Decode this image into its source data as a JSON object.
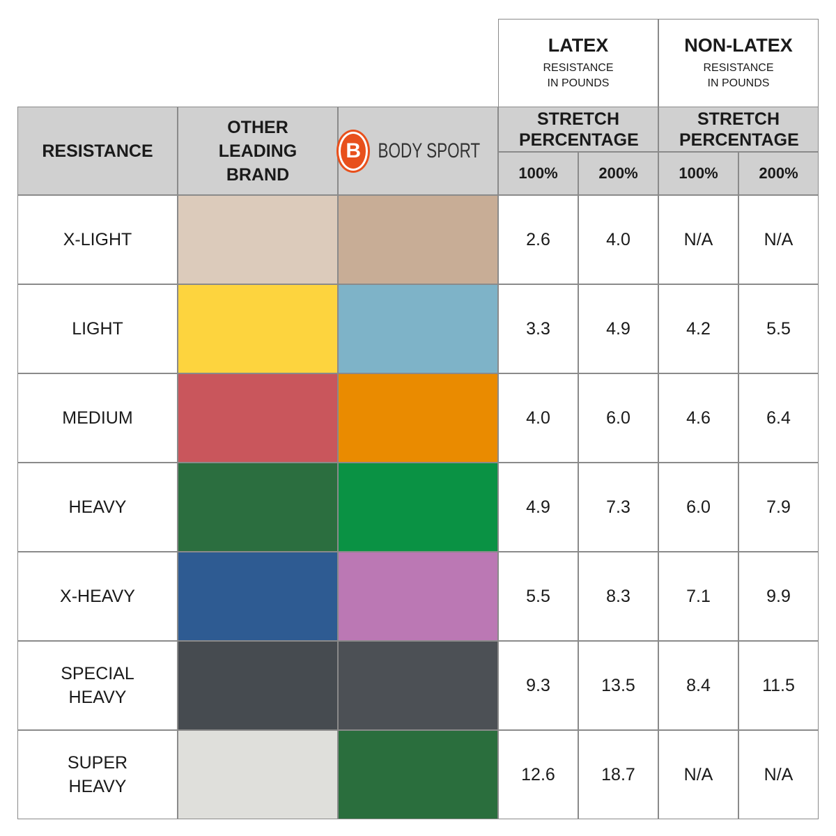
{
  "header": {
    "resistance": "RESISTANCE",
    "other_brand": "OTHER LEADING BRAND",
    "logo_letter": "B",
    "logo_name": "BODY SPORT",
    "groups": [
      {
        "title": "LATEX",
        "subtitle": "RESISTANCE IN POUNDS",
        "stretch": "STRETCH PERCENTAGE",
        "columns": [
          "100%",
          "200%"
        ]
      },
      {
        "title": "NON-LATEX",
        "subtitle": "RESISTANCE IN POUNDS",
        "stretch": "STRETCH PERCENTAGE",
        "columns": [
          "100%",
          "200%"
        ]
      }
    ]
  },
  "rows": [
    {
      "resistance": "X-LIGHT",
      "other_color": "#dccbbb",
      "bodysport_color": "#c8ad96",
      "values": [
        "2.6",
        "4.0",
        "N/A",
        "N/A"
      ]
    },
    {
      "resistance": "LIGHT",
      "other_color": "#fdd43e",
      "bodysport_color": "#7eb3c8",
      "values": [
        "3.3",
        "4.9",
        "4.2",
        "5.5"
      ]
    },
    {
      "resistance": "MEDIUM",
      "other_color": "#c9565c",
      "bodysport_color": "#ea8b00",
      "values": [
        "4.0",
        "6.0",
        "4.6",
        "6.4"
      ]
    },
    {
      "resistance": "HEAVY",
      "other_color": "#2b6e3f",
      "bodysport_color": "#0a9244",
      "values": [
        "4.9",
        "7.3",
        "6.0",
        "7.9"
      ]
    },
    {
      "resistance": "X-HEAVY",
      "other_color": "#2e5b92",
      "bodysport_color": "#bb78b4",
      "values": [
        "5.5",
        "8.3",
        "7.1",
        "9.9"
      ]
    },
    {
      "resistance": "SPECIAL HEAVY",
      "other_color": "#464b50",
      "bodysport_color": "#4c5055",
      "values": [
        "9.3",
        "13.5",
        "8.4",
        "11.5"
      ]
    },
    {
      "resistance": "SUPER HEAVY",
      "other_color": "#dfdfdb",
      "bodysport_color": "#2a6e3d",
      "values": [
        "12.6",
        "18.7",
        "N/A",
        "N/A"
      ]
    }
  ]
}
